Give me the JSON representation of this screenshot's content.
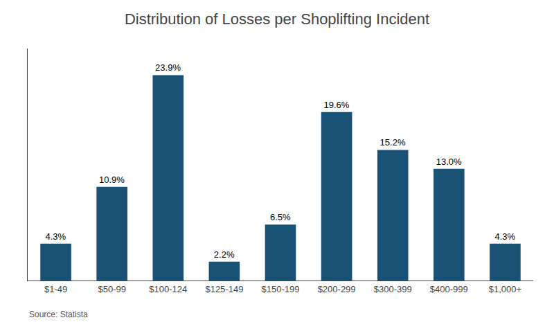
{
  "chart_data": {
    "type": "bar",
    "title": "Distribution of Losses per Shoplifting Incident",
    "categories": [
      "$1-49",
      "$50-99",
      "$100-124",
      "$125-149",
      "$150-199",
      "$200-299",
      "$300-399",
      "$400-999",
      "$1,000+"
    ],
    "values": [
      4.3,
      10.9,
      23.9,
      2.2,
      6.5,
      19.6,
      15.2,
      13.0,
      4.3
    ],
    "value_labels": [
      "4.3%",
      "10.9%",
      "23.9%",
      "2.2%",
      "6.5%",
      "19.6%",
      "15.2%",
      "13.0%",
      "4.3%"
    ],
    "data_labels": true,
    "color": "#1a5276",
    "ylim": [
      0,
      27
    ],
    "grid": false,
    "tick_labels": "x",
    "annotations": [
      "Source: Statista"
    ]
  }
}
